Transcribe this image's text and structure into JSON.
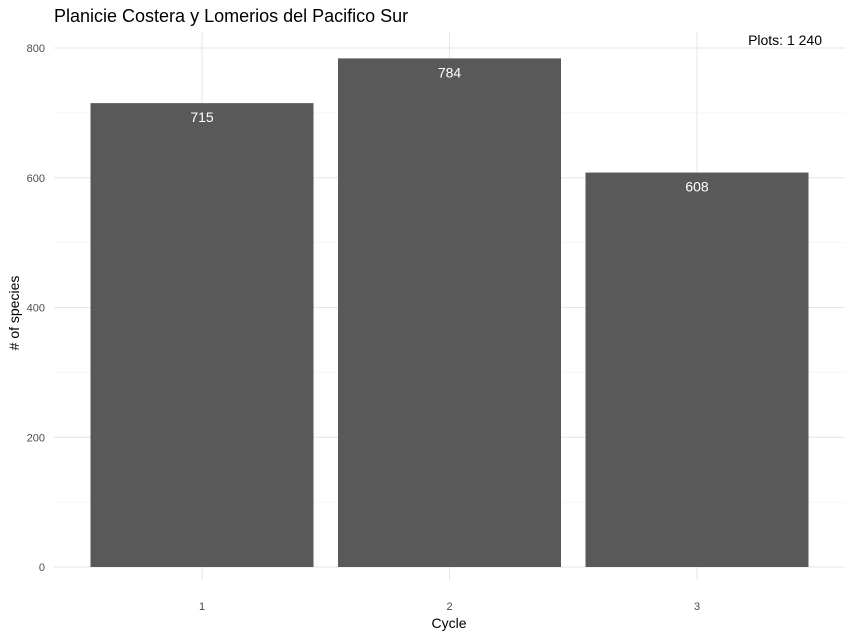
{
  "chart_data": {
    "type": "bar",
    "title": "Planicie Costera y Lomerios del Pacifico Sur",
    "annotation": "Plots: 1 240",
    "xlabel": "Cycle",
    "ylabel": "# of species",
    "categories": [
      "1",
      "2",
      "3"
    ],
    "values": [
      715,
      784,
      608
    ],
    "data_labels": [
      "715",
      "784",
      "608"
    ],
    "ylim": [
      0,
      800
    ],
    "yticks": [
      0,
      200,
      400,
      600,
      800
    ],
    "ytick_labels": [
      "0",
      "200",
      "400",
      "600",
      "800"
    ],
    "grid": true,
    "legend": "none",
    "bar_color": "#595959",
    "label_color": "#ffffff"
  }
}
